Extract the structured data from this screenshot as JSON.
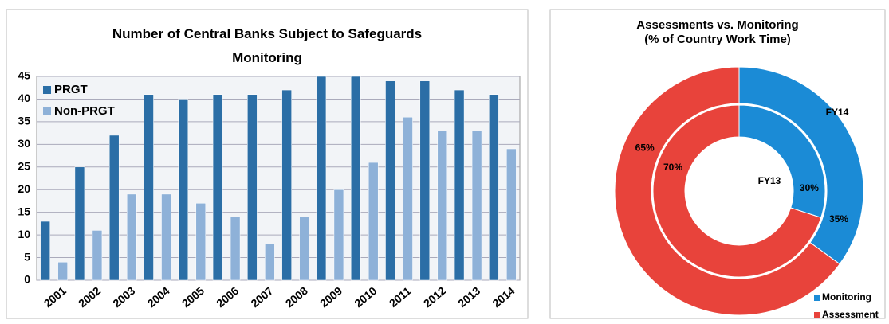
{
  "chart_data": [
    {
      "type": "bar",
      "title": "Number of Central Banks Subject to Safeguards Monitoring",
      "categories": [
        "2001",
        "2002",
        "2003",
        "2004",
        "2005",
        "2006",
        "2007",
        "2008",
        "2009",
        "2010",
        "2011",
        "2012",
        "2013",
        "2014"
      ],
      "series": [
        {
          "name": "PRGT",
          "color": "#2b6ea6",
          "values": [
            13,
            25,
            32,
            41,
            40,
            41,
            41,
            42,
            45,
            45,
            44,
            44,
            42,
            41
          ]
        },
        {
          "name": "Non-PRGT",
          "color": "#8eb1d8",
          "values": [
            4,
            11,
            19,
            19,
            17,
            14,
            8,
            14,
            20,
            26,
            36,
            33,
            33,
            29
          ]
        }
      ],
      "ylim": [
        0,
        45
      ],
      "yticks": [
        0,
        5,
        10,
        15,
        20,
        25,
        30,
        35,
        40,
        45
      ],
      "grid": true,
      "legend": "top-left"
    },
    {
      "type": "doughnut",
      "title": [
        "Assessments vs. Monitoring",
        "(% of Country Work Time)"
      ],
      "categories": [
        "Monitoring",
        "Assessment"
      ],
      "colors": [
        "#1b8bd6",
        "#e8433b"
      ],
      "rings": [
        {
          "name": "FY14",
          "values": [
            35,
            65
          ],
          "value_labels": [
            "35%",
            "65%"
          ]
        },
        {
          "name": "FY13",
          "values": [
            30,
            70
          ],
          "value_labels": [
            "30%",
            "70%"
          ]
        }
      ],
      "legend": "bottom-right"
    }
  ]
}
